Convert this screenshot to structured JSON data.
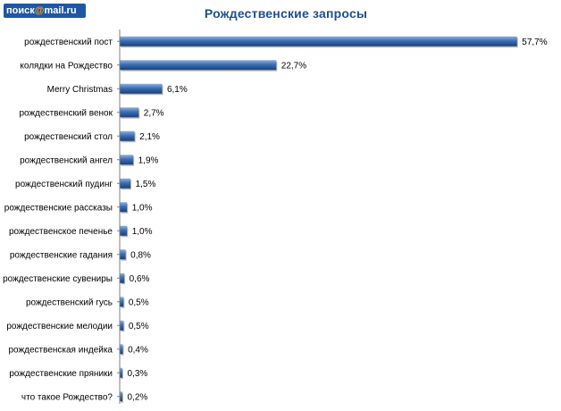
{
  "header": {
    "logo_prefix": "поиск",
    "logo_at": "@",
    "logo_suffix": "mail.ru"
  },
  "chart_data": {
    "type": "bar",
    "orientation": "horizontal",
    "title": "Рождественские запросы",
    "xlabel": "",
    "ylabel": "",
    "xlim": [
      0,
      60
    ],
    "grid": false,
    "legend": "none",
    "bar_color": "#2f62a8",
    "categories": [
      "рождественский пост",
      "колядки на Рождество",
      "Merry Christmas",
      "рождественский венок",
      "рождественский стол",
      "рождественский ангел",
      "рождественский пудинг",
      "рождественские рассказы",
      "рождественское печенье",
      "рождественские гадания",
      "рождественские сувениры",
      "рождественский гусь",
      "рождественские мелодии",
      "рождественская индейка",
      "рождественские пряники",
      "что такое Рождество?"
    ],
    "values": [
      57.7,
      22.7,
      6.1,
      2.7,
      2.1,
      1.9,
      1.5,
      1.0,
      1.0,
      0.8,
      0.6,
      0.5,
      0.5,
      0.4,
      0.3,
      0.2
    ],
    "value_labels": [
      "57,7%",
      "22,7%",
      "6,1%",
      "2,7%",
      "2,1%",
      "1,9%",
      "1,5%",
      "1,0%",
      "1,0%",
      "0,8%",
      "0,6%",
      "0,5%",
      "0,5%",
      "0,4%",
      "0,3%",
      "0,2%"
    ]
  }
}
